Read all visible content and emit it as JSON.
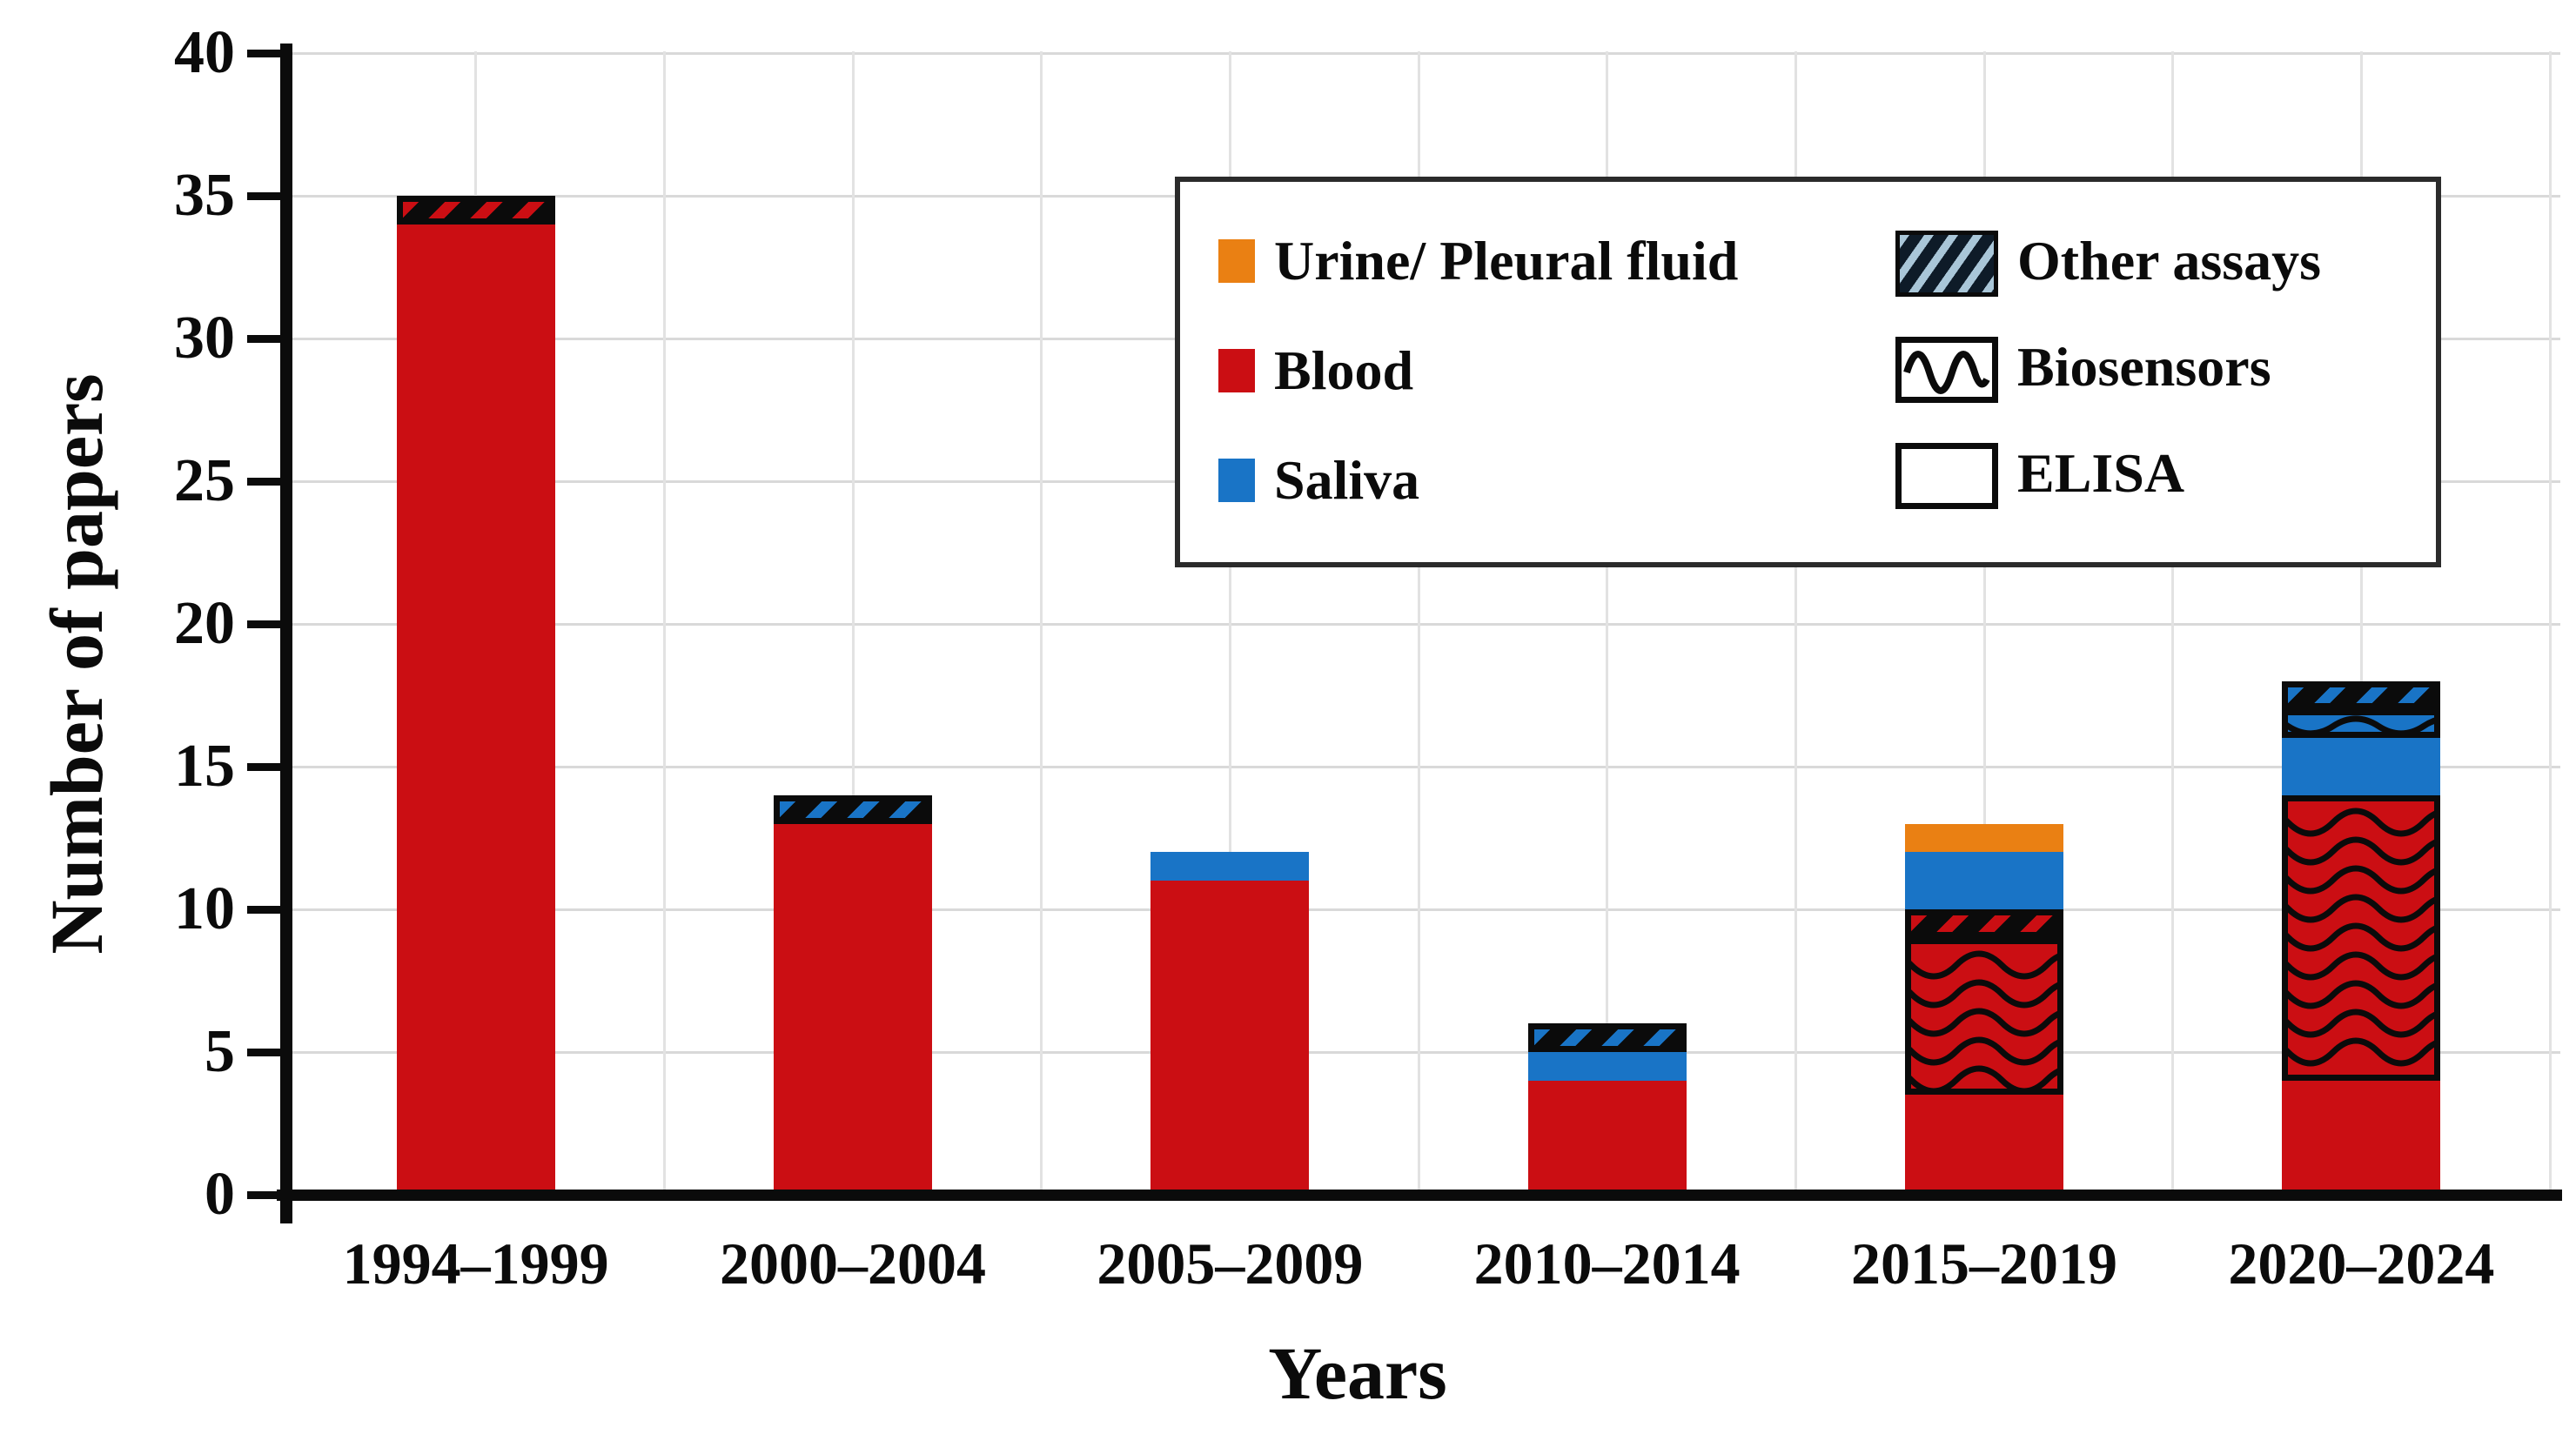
{
  "chart_data": {
    "type": "bar",
    "stacked": true,
    "xlabel": "Years",
    "ylabel": "Number of papers",
    "ylim": [
      0,
      40
    ],
    "yticks": [
      0,
      5,
      10,
      15,
      20,
      25,
      30,
      35,
      40
    ],
    "grid": true,
    "legend_position": "upper-right-inside",
    "categories": [
      "1994–1999",
      "2000–2004",
      "2005–2009",
      "2010–2014",
      "2015–2019",
      "2020–2024"
    ],
    "series": [
      {
        "name": "Blood — ELISA",
        "sample": "Blood",
        "assay": "ELISA",
        "pattern": "solid",
        "color": "#CB0E13",
        "values": [
          34,
          13,
          11,
          4,
          3.5,
          4
        ]
      },
      {
        "name": "Blood — Biosensors",
        "sample": "Blood",
        "assay": "Biosensors",
        "pattern": "wave",
        "color": "#CB0E13",
        "values": [
          0,
          0,
          0,
          0,
          5.5,
          10
        ]
      },
      {
        "name": "Blood — Other assays",
        "sample": "Blood",
        "assay": "Other assays",
        "pattern": "hatch",
        "color": "#CB0E13",
        "values": [
          1,
          0,
          0,
          0,
          1,
          0
        ]
      },
      {
        "name": "Saliva — ELISA",
        "sample": "Saliva",
        "assay": "ELISA",
        "pattern": "solid",
        "color": "#1974C6",
        "values": [
          0,
          0,
          1,
          1,
          2,
          2
        ]
      },
      {
        "name": "Saliva — Biosensors",
        "sample": "Saliva",
        "assay": "Biosensors",
        "pattern": "wave",
        "color": "#1974C6",
        "values": [
          0,
          0,
          0,
          0,
          0,
          1
        ]
      },
      {
        "name": "Saliva — Other assays",
        "sample": "Saliva",
        "assay": "Other assays",
        "pattern": "hatch",
        "color": "#1974C6",
        "values": [
          0,
          1,
          0,
          1,
          0,
          1
        ]
      },
      {
        "name": "Urine/ Pleural fluid — ELISA",
        "sample": "Urine/ Pleural fluid",
        "assay": "ELISA",
        "pattern": "solid",
        "color": "#EA8013",
        "values": [
          0,
          0,
          0,
          0,
          1,
          0
        ]
      }
    ],
    "totals": [
      35,
      14,
      12,
      6,
      13,
      18
    ],
    "legend": {
      "samples": [
        {
          "label": "Urine/ Pleural fluid",
          "color": "#EA8013"
        },
        {
          "label": "Blood",
          "color": "#CB0E13"
        },
        {
          "label": "Saliva",
          "color": "#1974C6"
        }
      ],
      "assays": [
        {
          "label": "Other assays",
          "pattern": "hatch"
        },
        {
          "label": "Biosensors",
          "pattern": "wave"
        },
        {
          "label": "ELISA",
          "pattern": "solid"
        }
      ]
    },
    "colors": {
      "blood": "#CB0E13",
      "saliva": "#1974C6",
      "urine_pleural_fluid": "#EA8013",
      "pattern_line": "#0b0b0b",
      "gridline": "#d9d9d9",
      "legend_hatch_bg": "#0e1b28",
      "legend_hatch_stripe": "#a9c6d8"
    }
  }
}
